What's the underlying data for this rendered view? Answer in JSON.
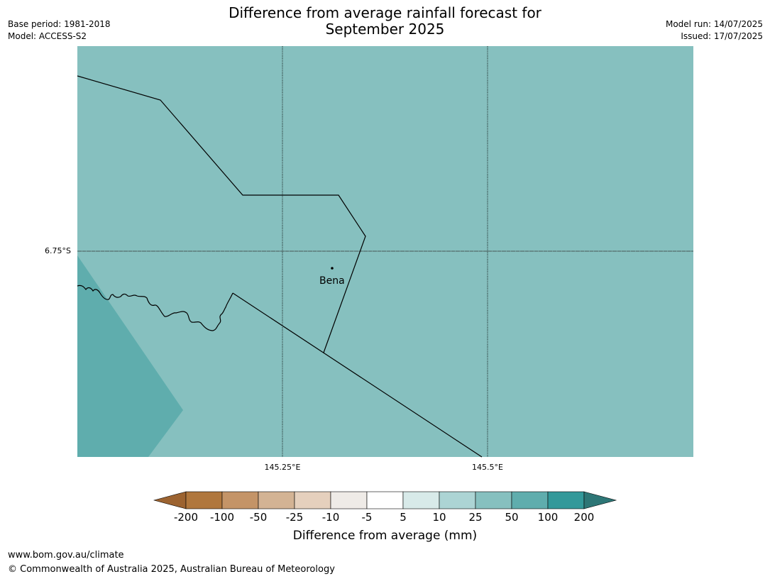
{
  "header": {
    "title_line1": "Difference from average rainfall forecast for",
    "title_line2": "September 2025",
    "base_period": "Base period: 1981-2018",
    "model": "Model: ACCESS-S2",
    "model_run": "Model run: 14/07/2025",
    "issued": "Issued: 17/07/2025"
  },
  "map": {
    "lat_label": "6.75°S",
    "lon_labels": [
      "145.25°E",
      "145.5°E"
    ],
    "place": "Bena",
    "colors": {
      "background": "#86c0bf",
      "wetter_region": "#5fadad",
      "gridline": "#000000"
    }
  },
  "colorbar": {
    "label": "Difference from average (mm)",
    "ticks": [
      "-200",
      "-100",
      "-50",
      "-25",
      "-10",
      "-5",
      "5",
      "10",
      "25",
      "50",
      "100",
      "200"
    ],
    "colors": [
      "#9c6330",
      "#b0773d",
      "#c49467",
      "#d3b394",
      "#e5d0bd",
      "#efebe7",
      "#ffffff",
      "#d8eae9",
      "#acd4d4",
      "#86c0bf",
      "#5fadad",
      "#33999a",
      "#2d7676"
    ]
  },
  "footer": {
    "url": "www.bom.gov.au/climate",
    "copyright": "© Commonwealth of Australia 2025, Australian Bureau of Meteorology"
  }
}
